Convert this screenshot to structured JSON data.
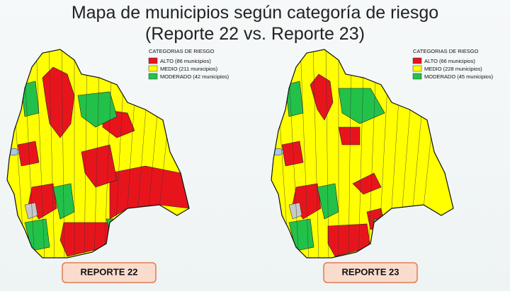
{
  "title": [
    "Mapa de municipios según categoría de riesgo",
    "(Reporte 22 vs. Reporte 23)"
  ],
  "maps": [
    {
      "legend": {
        "title": "CATEGORIAS DE RIESGO",
        "items": [
          {
            "label": "ALTO (86 municipios)",
            "color": "#e8141c"
          },
          {
            "label": "MEDIO (211 municipios)",
            "color": "#ffff00"
          },
          {
            "label": "MODERADO (42 municipios)",
            "color": "#22c24a"
          }
        ]
      },
      "button": "REPORTE 22"
    },
    {
      "legend": {
        "title": "CATEGORIAS DE RIESGO",
        "items": [
          {
            "label": "ALTO (66 municipios)",
            "color": "#e8141c"
          },
          {
            "label": "MEDIO (228 municipios)",
            "color": "#ffff00"
          },
          {
            "label": "MODERADO (45 municipios)",
            "color": "#22c24a"
          }
        ]
      },
      "button": "REPORTE 23"
    }
  ]
}
